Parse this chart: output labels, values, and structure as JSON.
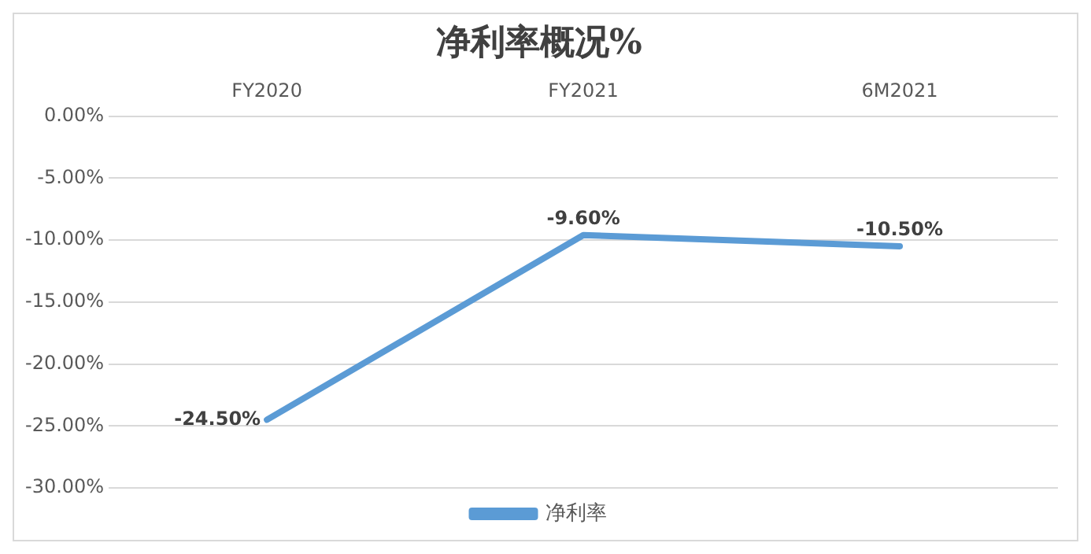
{
  "chart_data": {
    "type": "line",
    "title": "净利率概况%",
    "categories": [
      "FY2020",
      "FY2021",
      "6M2021"
    ],
    "series": [
      {
        "name": "净利率",
        "color": "#5b9bd5",
        "values": [
          -24.5,
          -9.6,
          -10.5
        ],
        "value_labels": [
          "-24.50%",
          "-9.60%",
          "-10.50%"
        ]
      }
    ],
    "ylim": [
      -30,
      0
    ],
    "yticks": [
      {
        "value": 0,
        "label": "0.00%"
      },
      {
        "value": -5,
        "label": "-5.00%"
      },
      {
        "value": -10,
        "label": "-10.00%"
      },
      {
        "value": -15,
        "label": "-15.00%"
      },
      {
        "value": -20,
        "label": "-20.00%"
      },
      {
        "value": -25,
        "label": "-25.00%"
      },
      {
        "value": -30,
        "label": "-30.00%"
      }
    ],
    "grid": "y",
    "legend": "bottom",
    "marker": "none",
    "line_style": "solid"
  }
}
